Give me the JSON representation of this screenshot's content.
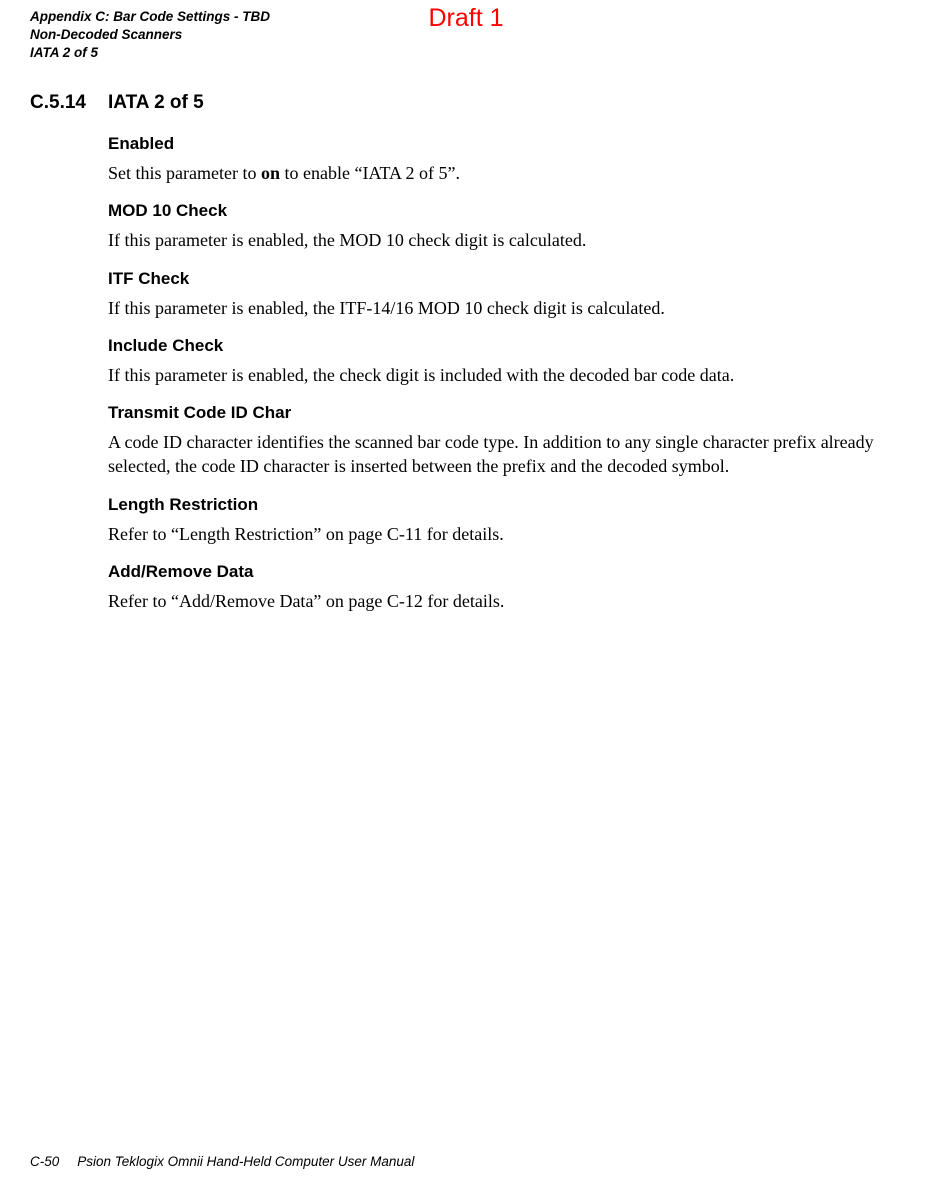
{
  "header": {
    "appendix_line": "Appendix C: Bar Code Settings - TBD",
    "scanner_line": "Non-Decoded Scanners",
    "topic_line": "IATA 2 of 5"
  },
  "draft_label": "Draft 1",
  "section": {
    "number": "C.5.14",
    "title": "IATA 2 of 5"
  },
  "subsections": {
    "enabled": {
      "heading": "Enabled",
      "text_before": "Set this parameter to ",
      "text_bold": "on",
      "text_after": " to enable “IATA 2 of 5”."
    },
    "mod10": {
      "heading": "MOD 10 Check",
      "text": "If this parameter is enabled, the MOD 10 check digit is calculated."
    },
    "itf": {
      "heading": "ITF Check",
      "text": "If this parameter is enabled, the ITF-14/16 MOD 10 check digit is calculated."
    },
    "include": {
      "heading": "Include Check",
      "text": "If this parameter is enabled, the check digit is included with the decoded bar code data."
    },
    "transmit": {
      "heading": "Transmit Code ID Char",
      "text": "A code ID character identifies the scanned bar code type. In addition to any single character prefix already selected, the code ID character is inserted between the prefix and the decoded symbol."
    },
    "length": {
      "heading": "Length Restriction",
      "text": "Refer to “Length Restriction” on page C-11 for details."
    },
    "addremove": {
      "heading": "Add/Remove Data",
      "text": "Refer to “Add/Remove Data” on page C-12 for details."
    }
  },
  "footer": {
    "page_num": "C-50",
    "manual_title": "Psion Teklogix Omnii Hand-Held Computer User Manual"
  }
}
